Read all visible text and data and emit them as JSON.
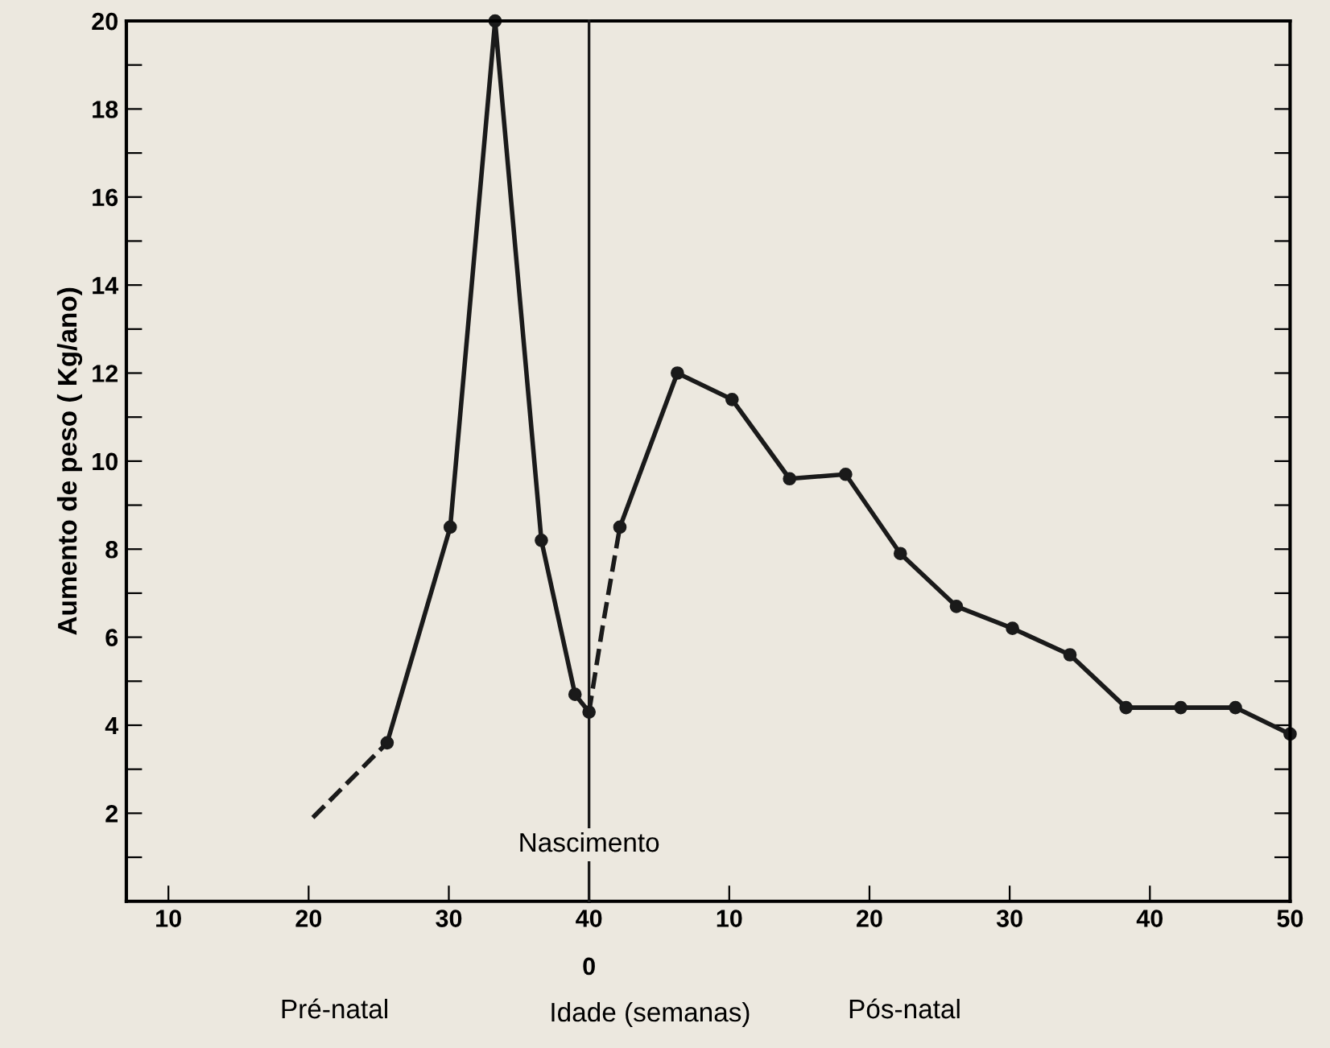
{
  "chart_data": [
    {
      "type": "line",
      "ylabel": "Aumento de peso ( Kg/ano)",
      "xlim": [
        7,
        40
      ],
      "ylim": [
        0,
        20
      ],
      "xticks": [
        10,
        20,
        30,
        40
      ],
      "yticks": [
        {
          "value": 1,
          "label": null
        },
        2,
        {
          "value": 3,
          "label": null
        },
        4,
        {
          "value": 5,
          "label": null
        },
        6,
        {
          "value": 7,
          "label": null
        },
        8,
        {
          "value": 9,
          "label": null
        },
        10,
        {
          "value": 11,
          "label": null
        },
        12,
        {
          "value": 13,
          "label": null
        },
        14,
        {
          "value": 15,
          "label": null
        },
        16,
        {
          "value": 17,
          "label": null
        },
        18,
        {
          "value": 19,
          "label": null
        },
        20
      ],
      "series": [
        {
          "color": "#1a1a1a",
          "x": [
            20.3,
            25.6
          ],
          "values": [
            1.9,
            3.6
          ],
          "line_style": "dashed"
        },
        {
          "color": "#1a1a1a",
          "x": [
            25.6,
            30.1,
            33.3,
            36.6,
            39.0,
            40.0
          ],
          "values": [
            3.6,
            8.5,
            20.0,
            8.2,
            4.7,
            4.3
          ],
          "line_style": "solid",
          "marker": "circle"
        }
      ],
      "ref_lines": [
        {
          "axis": "x",
          "value": 40,
          "label": "Nascimento",
          "color": "#1a1a1a",
          "line_style": "solid"
        }
      ],
      "annotations": [
        "Pré-natal"
      ]
    },
    {
      "type": "line",
      "xlabel": "Idade (semanas)",
      "xlim": [
        0,
        50
      ],
      "ylim": [
        0,
        20
      ],
      "tick_labels": "x",
      "xticks": [
        {
          "value": 0,
          "label": null
        },
        10,
        20,
        30,
        40,
        50
      ],
      "yticks": [
        {
          "value": 1,
          "label": null
        },
        2,
        {
          "value": 3,
          "label": null
        },
        4,
        {
          "value": 5,
          "label": null
        },
        6,
        {
          "value": 7,
          "label": null
        },
        8,
        {
          "value": 9,
          "label": null
        },
        10,
        {
          "value": 11,
          "label": null
        },
        12,
        {
          "value": 13,
          "label": null
        },
        14,
        {
          "value": 15,
          "label": null
        },
        16,
        {
          "value": 17,
          "label": null
        },
        18,
        {
          "value": 19,
          "label": null
        },
        20
      ],
      "series": [
        {
          "color": "#1a1a1a",
          "x": [
            0.0,
            1.0,
            2.2
          ],
          "values": [
            4.3,
            6.3,
            8.5
          ],
          "line_style": "dashed"
        },
        {
          "color": "#1a1a1a",
          "x": [
            2.2,
            6.3,
            10.2,
            14.3,
            18.3,
            22.2,
            26.2,
            30.2,
            34.3,
            38.3,
            42.2,
            46.1,
            50.0
          ],
          "values": [
            8.5,
            12.0,
            11.4,
            9.6,
            9.7,
            7.9,
            6.7,
            6.2,
            5.6,
            4.4,
            4.4,
            4.4,
            3.8
          ],
          "line_style": "solid",
          "marker": "circle"
        }
      ],
      "annotations": [
        "0",
        "Pós-natal"
      ]
    }
  ]
}
